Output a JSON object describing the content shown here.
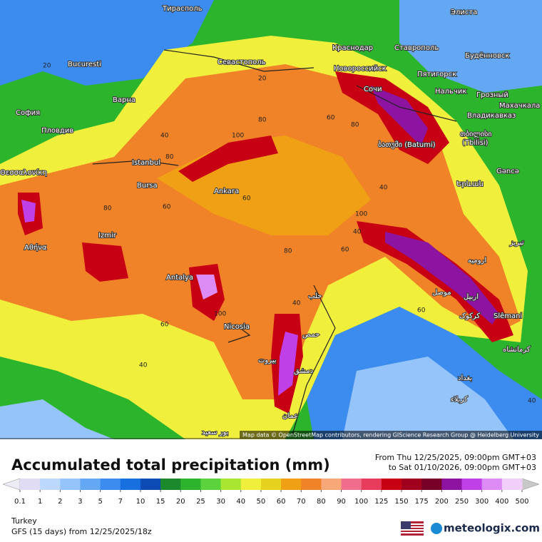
{
  "map": {
    "cities": [
      "Тирасполь",
      "Элиста",
      "Bucuresti",
      "Краснодар",
      "Ставрополь",
      "Будённовск",
      "Севастополь",
      "Новороссийск",
      "Пятигорск",
      "Варна",
      "Нальчик",
      "Грозный",
      "Сочи",
      "София",
      "Махачкала",
      "Владикавказ",
      "Пловдив",
      "თბილისი",
      "(Tbilisi)",
      "ბათუმი (Batumi)",
      "Istanbul",
      "Gəncə",
      "Θεσσαλονίκη",
      "Bursa",
      "Ankara",
      "Երևան",
      "Izmir",
      "Αθήνα",
      "تبریز",
      "ارومیه",
      "Antalya",
      "موصل",
      "حلب",
      "اربیل",
      "کرکوک",
      "Slêmani",
      "Nicosia",
      "حمص",
      "کرمانشاه",
      "بیروت",
      "دمشق",
      "بغداد",
      "کربلاء",
      "عمان",
      "بور سعيد"
    ],
    "contour_labels": [
      "20",
      "20",
      "40",
      "80",
      "80",
      "100",
      "60",
      "40",
      "80",
      "60",
      "40",
      "60",
      "100",
      "80",
      "60",
      "40",
      "80",
      "60",
      "100",
      "40",
      "60",
      "40"
    ],
    "attribution": "Map data © OpenStreetMap contributors, rendering GIScience Research Group @ Heidelberg University"
  },
  "footer": {
    "title": "Accumulated total precipitation (mm)",
    "from": "From Thu 12/25/2025, 09:00pm GMT+03",
    "to": "to Sat 01/10/2026, 09:00pm GMT+03",
    "region": "Turkey",
    "model": "GFS (15 days) from 12/25/2025/18z",
    "logo": "meteologix.com"
  },
  "legend": {
    "ticks": [
      0.1,
      1,
      2,
      3,
      5,
      7,
      10,
      15,
      20,
      25,
      30,
      40,
      50,
      60,
      70,
      80,
      90,
      100,
      125,
      150,
      175,
      200,
      250,
      300,
      400,
      500
    ],
    "under_color": "#ececf6",
    "colors": [
      "#e0dcf4",
      "#bcd8fc",
      "#94c4fa",
      "#64a8f4",
      "#3c8cf0",
      "#1870e0",
      "#0c4cb4",
      "#1c8a2c",
      "#2cb42c",
      "#5cd23c",
      "#a8e632",
      "#f0f03c",
      "#e6d21e",
      "#f0a014",
      "#f08228",
      "#f8a878",
      "#f06e8c",
      "#e83c5c",
      "#c80014",
      "#a0001e",
      "#780028",
      "#8c14a0",
      "#c040e8",
      "#dc8cf4",
      "#f0d0fa"
    ],
    "over_color": "#c8c8c8"
  }
}
